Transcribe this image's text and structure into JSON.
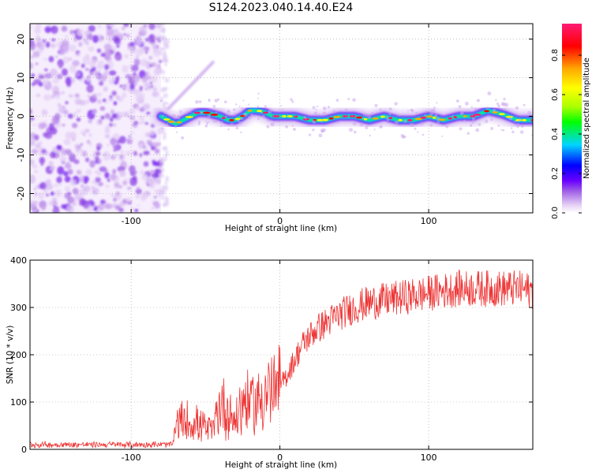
{
  "title": "S124.2023.040.14.40.E24",
  "chart_data": [
    {
      "type": "heatmap",
      "xlabel": "Height of straight line (km)",
      "ylabel": "Frequency (Hz)",
      "xlim": [
        -168,
        170
      ],
      "ylim": [
        -25,
        24
      ],
      "xticks": [
        -100,
        0,
        100
      ],
      "yticks": [
        -20,
        -10,
        0,
        10,
        20
      ],
      "grid": true,
      "noise_region_x": [
        -168,
        -80
      ],
      "ridge": {
        "x": [
          -80,
          -75,
          -70,
          -65,
          -60,
          -55,
          -50,
          -45,
          -40,
          -35,
          -30,
          -25,
          -20,
          -15,
          -10,
          -5,
          0,
          10,
          20,
          30,
          40,
          50,
          60,
          70,
          80,
          90,
          100,
          110,
          120,
          130,
          140,
          150,
          160,
          170
        ],
        "freq": [
          0,
          -1,
          -2,
          -1,
          0,
          1,
          1,
          0.5,
          0,
          -1,
          -1,
          0,
          1.5,
          1.5,
          1,
          0,
          0,
          0,
          -1,
          -1,
          0,
          0,
          -1,
          0,
          -1,
          -1,
          0,
          -1,
          0,
          0,
          1.5,
          0.5,
          -1,
          -1
        ]
      },
      "harmonic": {
        "x": [
          -75,
          -65,
          -55,
          -45
        ],
        "freq": [
          2,
          6,
          10,
          14
        ]
      },
      "colorbar": {
        "label": "Normalized spectral amplitude",
        "ticks": [
          0.0,
          0.2,
          0.4,
          0.6,
          0.8
        ],
        "tick_labels": [
          "0.0",
          "0.2",
          "0.4",
          "0.6",
          "0.8"
        ],
        "range": [
          0,
          0.96
        ],
        "colors": [
          "#ffffff",
          "#e6d2f5",
          "#9a57e6",
          "#6a00ff",
          "#0000ff",
          "#00d5ff",
          "#00ff00",
          "#aaff00",
          "#ffff00",
          "#ffaa00",
          "#ff0000",
          "#ff1a75"
        ]
      }
    },
    {
      "type": "line",
      "xlabel": "Height of straight line (km)",
      "ylabel": "SNR (10 * v/v)",
      "xlim": [
        -168,
        170
      ],
      "ylim": [
        0,
        400
      ],
      "xticks": [
        -100,
        0,
        100
      ],
      "yticks": [
        0,
        100,
        200,
        300,
        400
      ],
      "grid": true,
      "series": [
        {
          "color": "#ee3333",
          "x": [
            -168,
            -140,
            -110,
            -80,
            -72,
            -70,
            -65,
            -60,
            -55,
            -50,
            -45,
            -40,
            -35,
            -30,
            -25,
            -20,
            -15,
            -10,
            -5,
            0,
            5,
            10,
            15,
            20,
            25,
            30,
            40,
            50,
            60,
            70,
            80,
            90,
            100,
            110,
            120,
            130,
            140,
            150,
            160,
            170
          ],
          "y": [
            10,
            10,
            10,
            10,
            10,
            50,
            60,
            55,
            55,
            45,
            40,
            100,
            80,
            60,
            100,
            100,
            100,
            120,
            120,
            130,
            160,
            190,
            220,
            240,
            255,
            265,
            285,
            300,
            310,
            315,
            320,
            325,
            330,
            335,
            340,
            340,
            340,
            340,
            340,
            335
          ]
        }
      ]
    }
  ]
}
